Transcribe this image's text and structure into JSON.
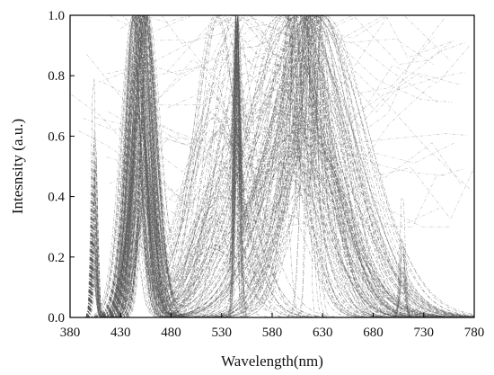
{
  "chart_data": {
    "type": "line",
    "title": "",
    "xlabel": "Wavelength(nm)",
    "ylabel": "Intesnsity (a.u.)",
    "xlim": [
      380,
      780
    ],
    "ylim": [
      0,
      1.0
    ],
    "x_ticks": [
      "380",
      "430",
      "480",
      "530",
      "580",
      "630",
      "680",
      "730",
      "780"
    ],
    "y_ticks": [
      "0.0",
      "0.2",
      "0.4",
      "0.6",
      "0.8",
      "1.0"
    ],
    "grid": false,
    "legend": "none",
    "line_style": "dash-dot",
    "line_color": "#555555",
    "notes": "Many overlapping normalized emission spectra (hundreds of dash-dot curves).",
    "series_groups": [
      {
        "component": "violet-peak",
        "center_nm": 404,
        "fwhm_nm": 5,
        "peak": 0.45
      },
      {
        "component": "blue-peak",
        "center_nm": 450,
        "fwhm_nm": 22,
        "peak": 1.0
      },
      {
        "component": "green-line",
        "center_nm": 545,
        "fwhm_nm": 4,
        "peak": 1.0
      },
      {
        "component": "green-broad",
        "center_nm": 530,
        "fwhm_nm": 60,
        "peak": 0.75
      },
      {
        "component": "orange-red-broad",
        "center_nm": 610,
        "fwhm_nm": 90,
        "peak": 1.0
      },
      {
        "component": "red-line",
        "center_nm": 611,
        "fwhm_nm": 5,
        "peak": 1.0
      },
      {
        "component": "deep-red-peak",
        "center_nm": 709,
        "fwhm_nm": 6,
        "peak": 0.1
      }
    ]
  }
}
